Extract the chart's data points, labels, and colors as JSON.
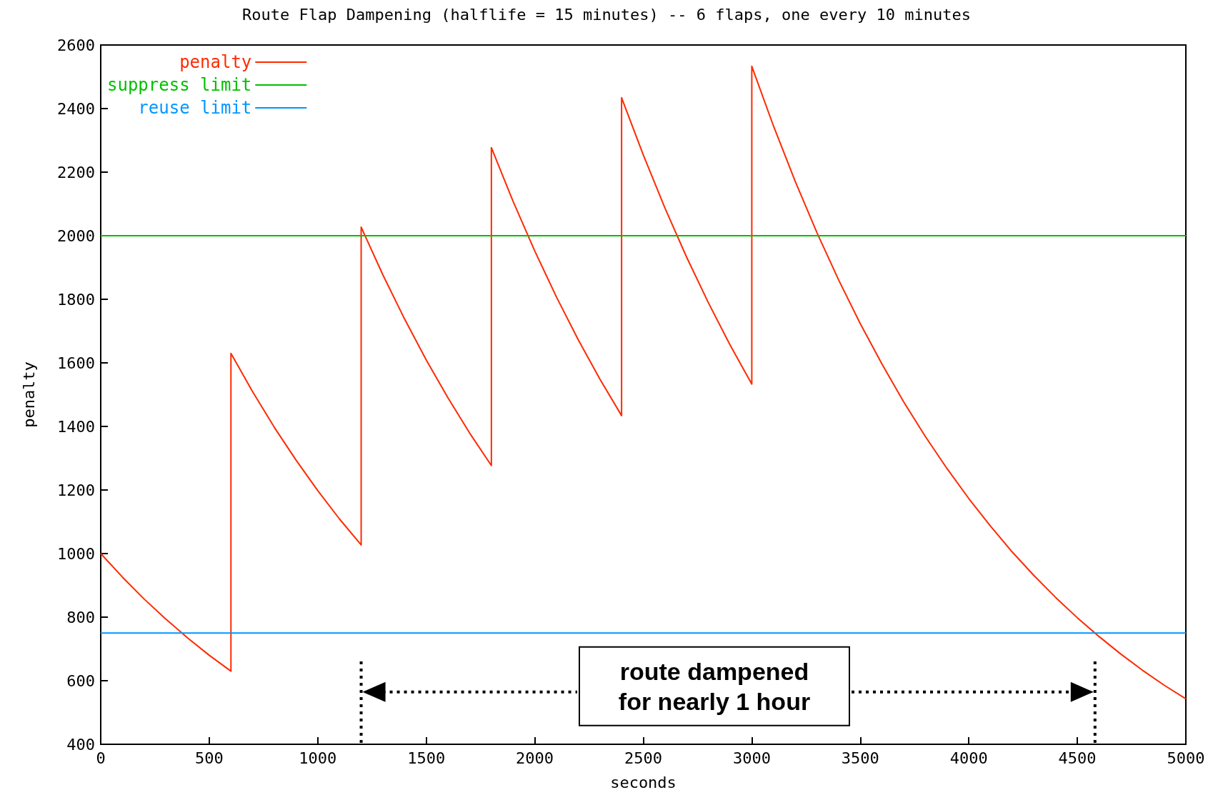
{
  "chart_data": {
    "type": "line",
    "title": "Route Flap Dampening (halflife = 15 minutes) -- 6 flaps, one every 10 minutes",
    "xlabel": "seconds",
    "ylabel": "penalty",
    "xlim": [
      0,
      5000
    ],
    "xticks": [
      0,
      500,
      1000,
      1500,
      2000,
      2500,
      3000,
      3500,
      4000,
      4500,
      5000
    ],
    "ylim": [
      400,
      2600
    ],
    "yticks": [
      400,
      600,
      800,
      1000,
      1200,
      1400,
      1600,
      1800,
      2000,
      2200,
      2400,
      2600
    ],
    "grid": false,
    "legend": "top left",
    "marker": "none",
    "line_style": "solid",
    "series": [
      {
        "name": "penalty",
        "color": "#ff2a00",
        "x": [
          0,
          100,
          200,
          300,
          400,
          500,
          600,
          600,
          700,
          800,
          900,
          1000,
          1100,
          1200,
          1200,
          1300,
          1400,
          1500,
          1600,
          1700,
          1800,
          1800,
          1900,
          2000,
          2100,
          2200,
          2300,
          2400,
          2400,
          2500,
          2600,
          2700,
          2800,
          2900,
          3000,
          3000,
          3100,
          3200,
          3300,
          3400,
          3500,
          3600,
          3700,
          3800,
          3900,
          4000,
          4100,
          4200,
          4300,
          4400,
          4500,
          4600,
          4700,
          4800,
          4900,
          5000
        ],
        "values": [
          1000,
          926,
          857,
          794,
          735,
          680,
          630,
          1630,
          1509,
          1397,
          1294,
          1198,
          1109,
          1027,
          2027,
          1877,
          1738,
          1609,
          1490,
          1379,
          1277,
          2277,
          2108,
          1952,
          1807,
          1673,
          1549,
          1434,
          2434,
          2254,
          2087,
          1932,
          1789,
          1656,
          1533,
          2533,
          2345,
          2171,
          2010,
          1861,
          1723,
          1596,
          1477,
          1368,
          1267,
          1173,
          1086,
          1005,
          931,
          862,
          798,
          739,
          684,
          633,
          586,
          543
        ]
      },
      {
        "name": "suppress limit",
        "color": "#00c000",
        "x": [
          0,
          5000
        ],
        "values": [
          2000,
          2000
        ]
      },
      {
        "name": "reuse limit",
        "color": "#0096ff",
        "x": [
          0,
          5000
        ],
        "values": [
          750,
          750
        ]
      }
    ],
    "annotations": [
      "route dampened\nfor nearly 1 hour"
    ]
  }
}
